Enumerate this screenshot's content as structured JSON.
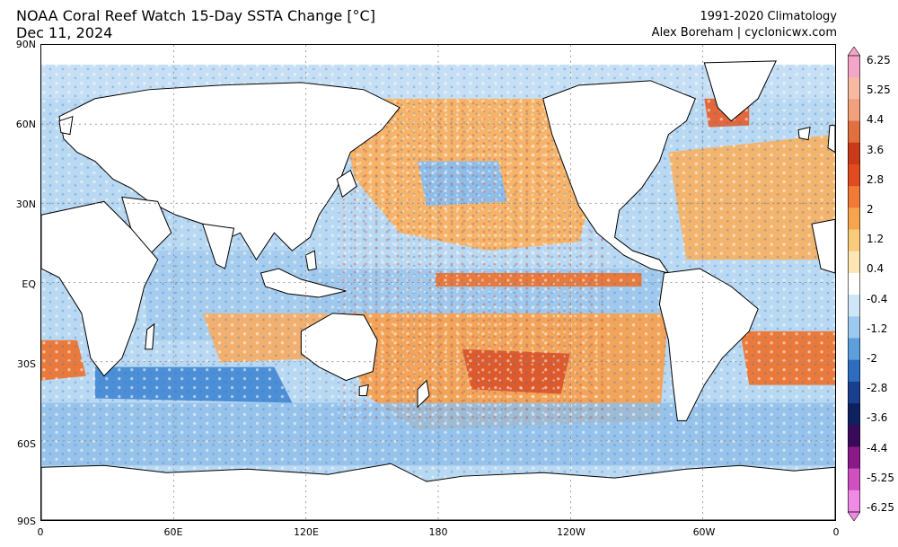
{
  "header": {
    "title_line1": "NOAA Coral Reef Watch 15-Day SSTA Change [°C]",
    "title_line2": "Dec 11, 2024",
    "climatology": "1991-2020 Climatology",
    "author": "Alex Boreham | cyclonicwx.com"
  },
  "axes": {
    "lat_labels": [
      "90N",
      "60N",
      "30N",
      "EQ",
      "30S",
      "60S",
      "90S"
    ],
    "lon_labels": [
      "0",
      "60E",
      "120E",
      "180",
      "120W",
      "60W",
      "0"
    ]
  },
  "colorbar": {
    "labels": [
      "6.25",
      "5.25",
      "4.4",
      "3.6",
      "2.8",
      "2",
      "1.2",
      "0.4",
      "-0.4",
      "-1.2",
      "-2",
      "-2.8",
      "-3.6",
      "-4.4",
      "-5.25",
      "-6.25"
    ],
    "colors": [
      "#f4a6c8",
      "#f7b9a2",
      "#f0a07a",
      "#e07040",
      "#c83a18",
      "#e24a20",
      "#f07a36",
      "#f6a44e",
      "#f8cc7a",
      "#fbe6b4",
      "#ffffff",
      "#cfe6f6",
      "#9ccaee",
      "#5d9fdc",
      "#2d6cbf",
      "#1a3f8f",
      "#0f2060",
      "#3a0a5a",
      "#8a1a8a",
      "#d050c0",
      "#ef8ae6"
    ]
  },
  "colors": {
    "ocean_warm": "#f5b971",
    "ocean_cool": "#a9cfee",
    "strong_warm": "#e2552a",
    "strong_cool": "#2f6ec4",
    "land": "#ffffff",
    "ice": "#ffffff"
  }
}
